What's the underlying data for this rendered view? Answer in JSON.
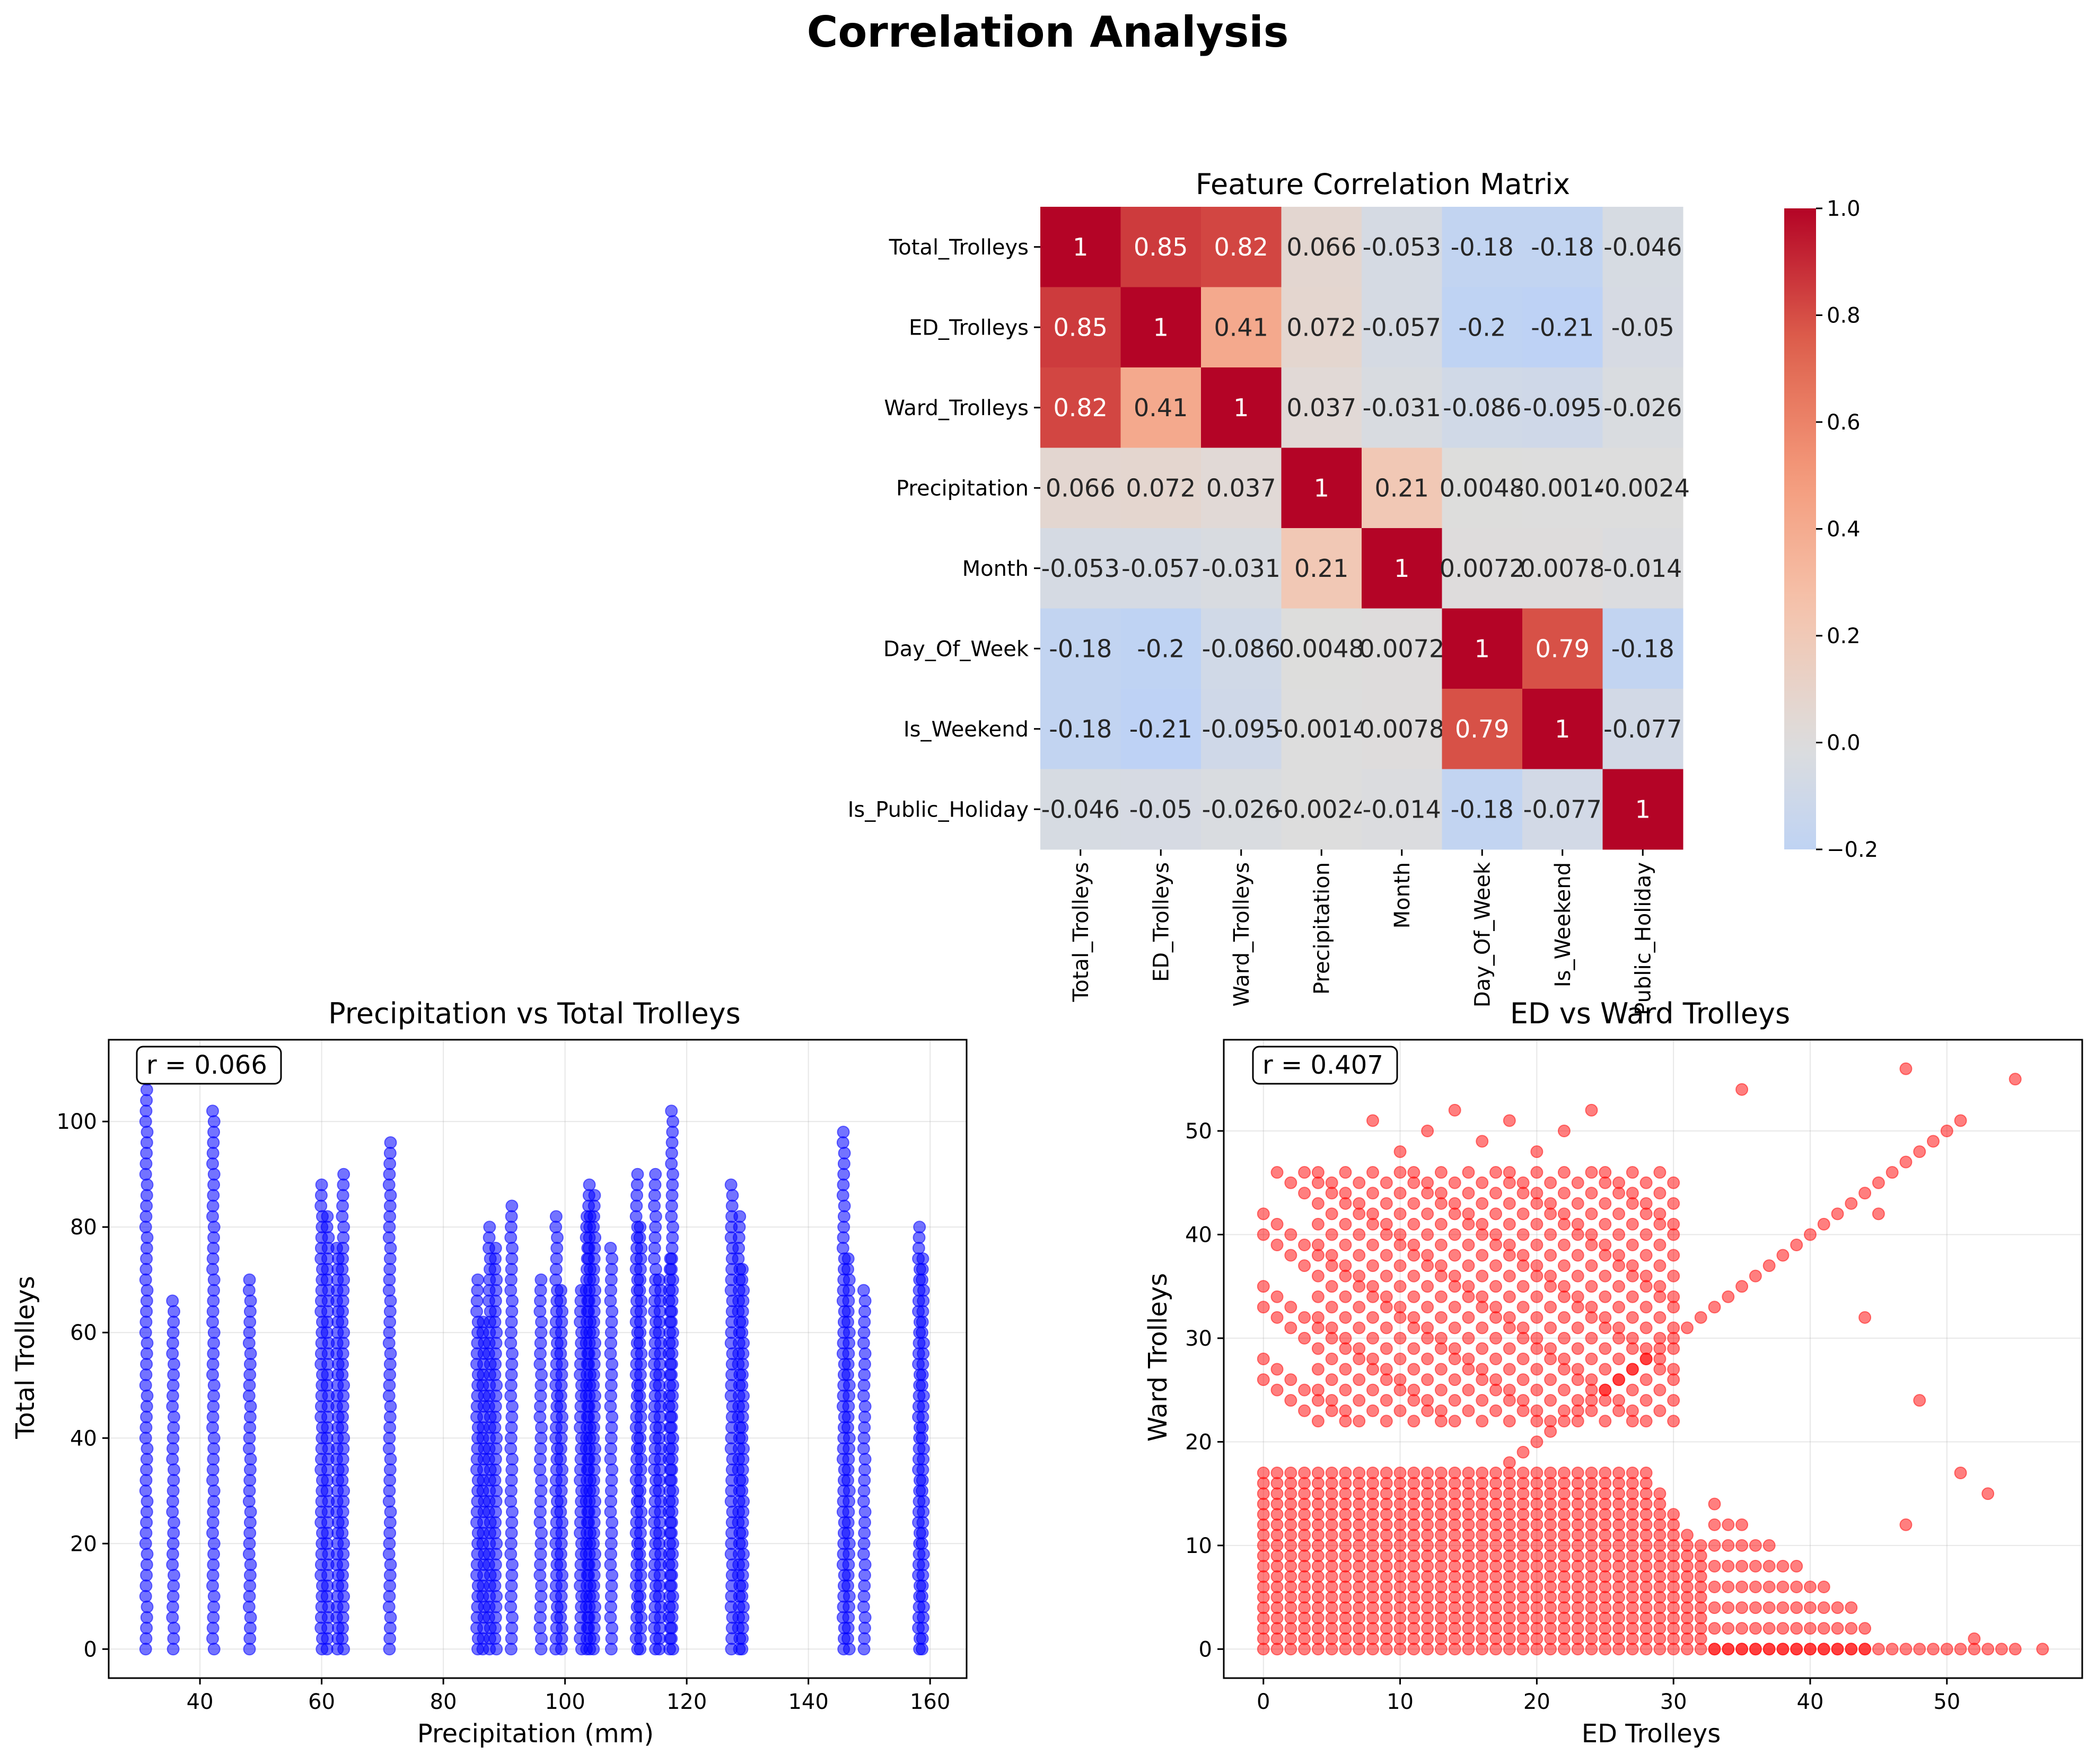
{
  "figure": {
    "title": "Correlation Analysis"
  },
  "chart_data": [
    {
      "type": "heatmap",
      "title": "Feature Correlation Matrix",
      "labels": [
        "Total_Trolleys",
        "ED_Trolleys",
        "Ward_Trolleys",
        "Precipitation",
        "Month",
        "Day_Of_Week",
        "Is_Weekend",
        "Is_Public_Holiday"
      ],
      "tick_labels_x": [
        "Total_Trolleys",
        "ED_Trolleys",
        "Ward_Trolleys",
        "Precipitation",
        "Month",
        "Day_Of_Week",
        "Is_Weekend",
        "Public_Holiday"
      ],
      "values": [
        [
          1,
          0.85,
          0.82,
          0.066,
          -0.053,
          -0.18,
          -0.18,
          -0.046
        ],
        [
          0.85,
          1,
          0.41,
          0.072,
          -0.057,
          -0.2,
          -0.21,
          -0.05
        ],
        [
          0.82,
          0.41,
          1,
          0.037,
          -0.031,
          -0.086,
          -0.095,
          -0.026
        ],
        [
          0.066,
          0.072,
          0.037,
          1,
          0.21,
          0.0048,
          -0.0014,
          -0.0024
        ],
        [
          -0.053,
          -0.057,
          -0.031,
          0.21,
          1,
          0.0072,
          0.0078,
          -0.014
        ],
        [
          -0.18,
          -0.2,
          -0.086,
          0.0048,
          0.0072,
          1,
          0.79,
          -0.18
        ],
        [
          -0.18,
          -0.21,
          -0.095,
          -0.0014,
          0.0078,
          0.79,
          1,
          -0.077
        ],
        [
          -0.046,
          -0.05,
          -0.026,
          -0.0024,
          -0.014,
          -0.18,
          -0.077,
          1
        ]
      ],
      "cell_text": [
        [
          "1",
          "0.85",
          "0.82",
          "0.066",
          "-0.053",
          "-0.18",
          "-0.18",
          "-0.046"
        ],
        [
          "0.85",
          "1",
          "0.41",
          "0.072",
          "-0.057",
          "-0.2",
          "-0.21",
          "-0.05"
        ],
        [
          "0.82",
          "0.41",
          "1",
          "0.037",
          "-0.031",
          "-0.086",
          "-0.095",
          "-0.026"
        ],
        [
          "0.066",
          "0.072",
          "0.037",
          "1",
          "0.21",
          "0.0048",
          "-0.0014",
          "-0.0024"
        ],
        [
          "-0.053",
          "-0.057",
          "-0.031",
          "0.21",
          "1",
          "0.0072",
          "0.0078",
          "-0.014"
        ],
        [
          "-0.18",
          "-0.2",
          "-0.086",
          "0.0048",
          "0.0072",
          "1",
          "0.79",
          "-0.18"
        ],
        [
          "-0.18",
          "-0.21",
          "-0.095",
          "-0.0014",
          "0.0078",
          "0.79",
          "1",
          "-0.077"
        ],
        [
          "-0.046",
          "-0.05",
          "-0.026",
          "-0.0024",
          "-0.014",
          "-0.18",
          "-0.077",
          "1"
        ]
      ],
      "colormap": "coolwarm",
      "colorbar": {
        "vmin": -0.2,
        "vmax": 1.0,
        "ticks": [
          "1.0",
          "0.8",
          "0.6",
          "0.4",
          "0.2",
          "0.0",
          "−0.2"
        ]
      }
    },
    {
      "type": "scatter",
      "title": "Precipitation vs Total Trolleys",
      "xlabel": "Precipitation (mm)",
      "ylabel": "Total Trolleys",
      "xlim": [
        25,
        166
      ],
      "ylim": [
        -5.5,
        115.5
      ],
      "xticks": [
        40,
        60,
        80,
        100,
        120,
        140,
        160
      ],
      "yticks": [
        0,
        20,
        40,
        60,
        80,
        100
      ],
      "grid": true,
      "color": "#0000ff",
      "annotation": "r = 0.066",
      "columns": [
        {
          "x": 31.2,
          "max": 110
        },
        {
          "x": 35.6,
          "max": 66
        },
        {
          "x": 42.2,
          "max": 102
        },
        {
          "x": 48.2,
          "max": 70
        },
        {
          "x": 60.0,
          "max": 89
        },
        {
          "x": 61.0,
          "max": 82
        },
        {
          "x": 62.6,
          "max": 76
        },
        {
          "x": 63.5,
          "max": 90
        },
        {
          "x": 71.2,
          "max": 96
        },
        {
          "x": 85.6,
          "max": 70
        },
        {
          "x": 86.6,
          "max": 62
        },
        {
          "x": 87.6,
          "max": 80
        },
        {
          "x": 88.6,
          "max": 76
        },
        {
          "x": 91.2,
          "max": 85
        },
        {
          "x": 96.0,
          "max": 71
        },
        {
          "x": 98.6,
          "max": 83
        },
        {
          "x": 99.4,
          "max": 68
        },
        {
          "x": 102.6,
          "max": 69
        },
        {
          "x": 103.6,
          "max": 82
        },
        {
          "x": 104.0,
          "max": 88
        },
        {
          "x": 104.8,
          "max": 87
        },
        {
          "x": 107.6,
          "max": 77
        },
        {
          "x": 111.8,
          "max": 91
        },
        {
          "x": 112.4,
          "max": 80
        },
        {
          "x": 114.8,
          "max": 90
        },
        {
          "x": 115.6,
          "max": 71
        },
        {
          "x": 117.2,
          "max": 75
        },
        {
          "x": 117.6,
          "max": 103
        },
        {
          "x": 127.4,
          "max": 89
        },
        {
          "x": 128.6,
          "max": 83
        },
        {
          "x": 129.2,
          "max": 73
        },
        {
          "x": 145.8,
          "max": 98
        },
        {
          "x": 146.6,
          "max": 74
        },
        {
          "x": 149.2,
          "max": 68
        },
        {
          "x": 158.2,
          "max": 80
        },
        {
          "x": 158.8,
          "max": 75
        }
      ]
    },
    {
      "type": "scatter",
      "title": "ED vs Ward Trolleys",
      "xlabel": "ED Trolleys",
      "ylabel": "Ward Trolleys",
      "xlim": [
        -2.9,
        59.9
      ],
      "ylim": [
        -2.8,
        58.8
      ],
      "xticks": [
        0,
        10,
        20,
        30,
        40,
        50
      ],
      "yticks": [
        0,
        10,
        20,
        30,
        40,
        50
      ],
      "grid": true,
      "color": "#ff0000",
      "annotation": "r = 0.407",
      "diagonal_max": 50,
      "outliers": [
        [
          47,
          56
        ],
        [
          55,
          55
        ],
        [
          51,
          51
        ],
        [
          35,
          54
        ],
        [
          48,
          24
        ],
        [
          51,
          17
        ],
        [
          53,
          15
        ],
        [
          44,
          32
        ],
        [
          45,
          42
        ],
        [
          47,
          12
        ],
        [
          52,
          1
        ],
        [
          57,
          0
        ]
      ]
    }
  ]
}
